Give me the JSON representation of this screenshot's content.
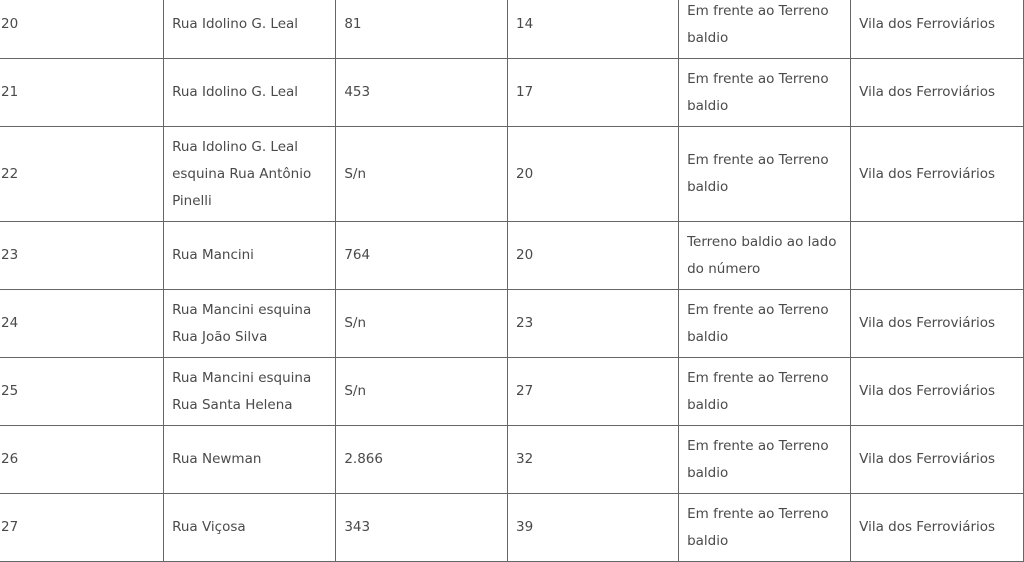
{
  "table": {
    "rows": [
      [
        "20",
        "Rua Idolino G. Leal",
        "81",
        "14",
        "Em frente ao Terreno baldio",
        "Vila dos Ferroviários"
      ],
      [
        "21",
        "Rua Idolino G. Leal",
        "453",
        "17",
        "Em frente ao Terreno baldio",
        "Vila dos Ferroviários"
      ],
      [
        "22",
        "Rua Idolino G. Leal esquina Rua Antônio Pinelli",
        "S/n",
        "20",
        "Em frente ao Terreno baldio",
        "Vila dos Ferroviários"
      ],
      [
        "23",
        "Rua Mancini",
        "764",
        "20",
        "Terreno baldio ao lado do número",
        ""
      ],
      [
        "24",
        "Rua Mancini esquina Rua João Silva",
        "S/n",
        "23",
        "Em frente ao Terreno baldio",
        "Vila dos Ferroviários"
      ],
      [
        "25",
        "Rua Mancini esquina Rua Santa Helena",
        "S/n",
        "27",
        "Em frente ao Terreno baldio",
        "Vila dos Ferroviários"
      ],
      [
        "26",
        "Rua Newman",
        "2.866",
        "32",
        "Em frente ao Terreno baldio",
        "Vila dos Ferroviários"
      ],
      [
        "27",
        "Rua Viçosa",
        "343",
        "39",
        "Em frente ao Terreno baldio",
        "Vila dos Ferroviários"
      ]
    ]
  }
}
